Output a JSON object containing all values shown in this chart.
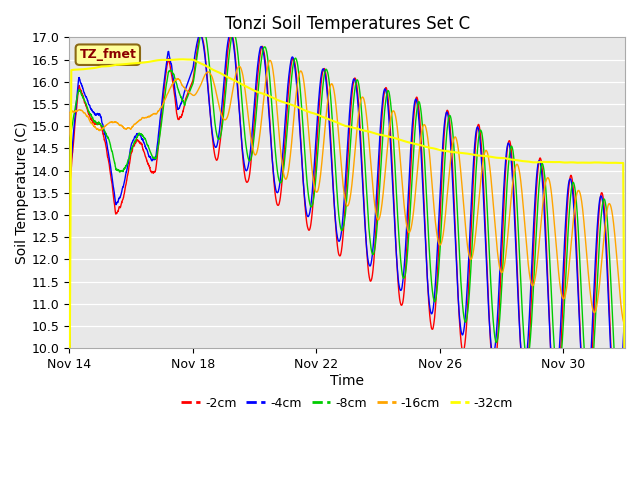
{
  "title": "Tonzi Soil Temperatures Set C",
  "xlabel": "Time",
  "ylabel": "Soil Temperature (C)",
  "ylim": [
    10.0,
    17.0
  ],
  "yticks": [
    10.0,
    10.5,
    11.0,
    11.5,
    12.0,
    12.5,
    13.0,
    13.5,
    14.0,
    14.5,
    15.0,
    15.5,
    16.0,
    16.5,
    17.0
  ],
  "xtick_labels": [
    "Nov 14",
    "Nov 18",
    "Nov 22",
    "Nov 26",
    "Nov 30"
  ],
  "xtick_positions": [
    0,
    4,
    8,
    12,
    16
  ],
  "annotation_text": "TZ_fmet",
  "annotation_color": "#8B0000",
  "annotation_bg": "#FFFF99",
  "annotation_border": "#8B6914",
  "bg_color": "#E8E8E8",
  "legend_labels": [
    "-2cm",
    "-4cm",
    "-8cm",
    "-16cm",
    "-32cm"
  ],
  "legend_colors": [
    "#FF0000",
    "#0000FF",
    "#00CC00",
    "#FFA500",
    "#FFFF00"
  ],
  "num_days": 18,
  "points_per_day": 240
}
